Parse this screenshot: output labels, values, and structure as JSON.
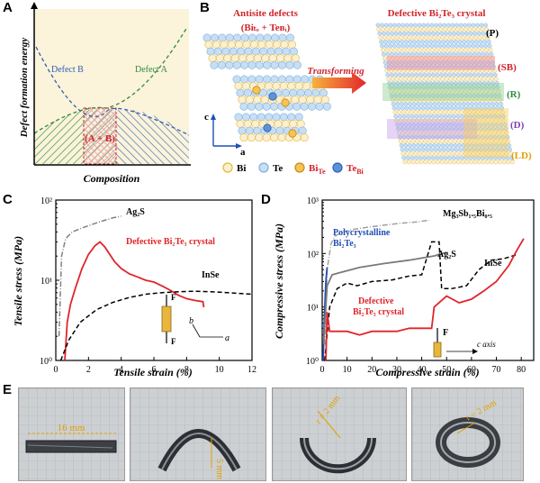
{
  "panels": {
    "A": {
      "label": "A",
      "ylabel": "Defect formation energy",
      "xlabel": "Composition",
      "defect_b": "Defect B",
      "defect_a": "Defect A",
      "region": "(A + B)",
      "colors": {
        "bg": "#fbf3da",
        "green": "#2e8b3f",
        "blue": "#2f5fb5",
        "red": "#d0252b"
      }
    },
    "B": {
      "label": "B",
      "left_title": "Antisite defects",
      "left_formula": "(Biₜₑ + Teʙᵢ)",
      "right_title": "Defective Bi₂Te₃ crystal",
      "arrow_text": "Transforming",
      "axis_c": "c",
      "axis_a": "a",
      "legend": [
        "Bi",
        "Te",
        "Bi_Te",
        "Te_Bi"
      ],
      "tags": [
        "(P)",
        "(SB)",
        "(R)",
        "(D)",
        "(LD)"
      ],
      "colors": {
        "bi": "#f2c96a",
        "te": "#a9cdee",
        "red": "#d0252b"
      }
    },
    "C": {
      "label": "C",
      "xlabel": "Tensile strain (%)",
      "ylabel": "Tensile stress (MPa)",
      "series_labels": {
        "ag2s": "Ag₂S",
        "bi2te3": "Defective Bi₂Te₃ crystal",
        "inse": "InSe"
      },
      "xticks": [
        "0",
        "2",
        "4",
        "6",
        "8",
        "10",
        "12"
      ],
      "yticks": [
        "10⁰",
        "10¹",
        "10²"
      ],
      "force": "F",
      "dir_b": "b",
      "dir_a": "a"
    },
    "D": {
      "label": "D",
      "xlabel": "Compressive strain (%)",
      "ylabel": "Compressive stress (MPa)",
      "series_labels": {
        "mg": "Mg₃Sb₁.₅Bi₀.₅",
        "poly1": "Polycrystalline",
        "poly2": "Bi₂Te₃",
        "ag2s": "Ag₂S",
        "inse": "InSe",
        "def1": "Defective",
        "def2": "Bi₂Te₃ crystal"
      },
      "xticks": [
        "0",
        "10",
        "20",
        "30",
        "40",
        "50",
        "60",
        "70",
        "80"
      ],
      "yticks": [
        "10⁰",
        "10¹",
        "10²",
        "10³"
      ],
      "force": "F",
      "c_axis": "c axis"
    },
    "E": {
      "label": "E",
      "photo1": "16 mm",
      "photo2": "5 mm",
      "photo3": "r = 2 mm",
      "photo4": "r = 2 mm"
    }
  },
  "chart_data": [
    {
      "type": "line",
      "title": "",
      "xlabel": "Tensile strain (%)",
      "ylabel": "Tensile stress (MPa)",
      "xlim": [
        0,
        12
      ],
      "ylim": [
        1,
        100
      ],
      "yscale": "log",
      "series": [
        {
          "name": "Ag₂S",
          "color": "#808080",
          "style": "dash-dot",
          "x": [
            0.2,
            0.35,
            0.6,
            1.0,
            1.5,
            2.0,
            2.5,
            3.0,
            3.5,
            4.0
          ],
          "y": [
            2,
            20,
            33,
            40,
            44,
            48,
            52,
            56,
            60,
            63
          ]
        },
        {
          "name": "Defective Bi₂Te₃ crystal",
          "color": "#e0252b",
          "style": "solid",
          "x": [
            0.55,
            0.7,
            0.9,
            1.2,
            1.6,
            2.0,
            2.4,
            2.7,
            3.0,
            3.3,
            3.6,
            4.0,
            4.5,
            5.0,
            5.5,
            6.0,
            6.5,
            7.0,
            7.5,
            8.0,
            8.5,
            9.0,
            9.05
          ],
          "y": [
            1,
            3,
            5,
            8,
            14,
            21,
            27,
            30,
            26,
            21,
            17,
            14,
            12,
            11,
            10,
            9.5,
            8.5,
            7.5,
            6.5,
            5.9,
            5.6,
            5.4,
            4.6
          ]
        },
        {
          "name": "InSe",
          "color": "#000000",
          "style": "dashed",
          "x": [
            0.3,
            0.8,
            1.5,
            2.5,
            3.5,
            4.5,
            5.5,
            6.5,
            7.5,
            8.5,
            9.5,
            10.5,
            11.5,
            12
          ],
          "y": [
            1,
            1.8,
            3,
            4.3,
            5.3,
            6.1,
            6.7,
            7.0,
            7.2,
            7.3,
            7.2,
            7.0,
            6.8,
            6.7
          ]
        }
      ]
    },
    {
      "type": "line",
      "title": "",
      "xlabel": "Compressive strain (%)",
      "ylabel": "Compressive stress (MPa)",
      "xlim": [
        0,
        85
      ],
      "ylim": [
        1,
        1000
      ],
      "yscale": "log",
      "series": [
        {
          "name": "Mg₃Sb₁.₅Bi₀.₅",
          "color": "#a0a0a0",
          "style": "dash-dot",
          "x": [
            1.0,
            2.0,
            3.5,
            5.0,
            8.0,
            12.0,
            18.0,
            25.0,
            32.0,
            38.0,
            43.0
          ],
          "y": [
            2,
            50,
            150,
            210,
            250,
            280,
            310,
            340,
            370,
            390,
            420
          ]
        },
        {
          "name": "Polycrystalline Bi₂Te₃",
          "color": "#1f4fb5",
          "style": "solid",
          "x": [
            0.4,
            0.8,
            1.2,
            1.5,
            1.8,
            2.0
          ],
          "y": [
            1,
            5,
            15,
            30,
            45,
            55
          ]
        },
        {
          "name": "Ag₂S",
          "color": "#7a7a7a",
          "style": "solid",
          "x": [
            0.5,
            2.0,
            4.0,
            8.0,
            15.0,
            25.0,
            35.0,
            45.0,
            50.0
          ],
          "y": [
            2,
            25,
            40,
            45,
            55,
            65,
            75,
            90,
            105
          ]
        },
        {
          "name": "InSe",
          "color": "#000000",
          "style": "dashed",
          "x": [
            1.0,
            3.0,
            6.0,
            10.0,
            14.0,
            20.0,
            28.0,
            35.0,
            40.0,
            44.0,
            47.0,
            48.0,
            52.0,
            58.0,
            63.0,
            68.0,
            73.0,
            78.0
          ],
          "y": [
            1,
            10,
            22,
            28,
            25,
            30,
            32,
            38,
            40,
            165,
            165,
            22,
            22,
            25,
            50,
            75,
            80,
            95
          ]
        },
        {
          "name": "Defective Bi₂Te₃ crystal",
          "color": "#e0252b",
          "style": "solid",
          "x": [
            1.5,
            2.0,
            3.0,
            6.0,
            10.0,
            15.0,
            20.0,
            25.0,
            30.0,
            35.0,
            40.0,
            44.0,
            45.0,
            50.0,
            55.0,
            60.0,
            65.0,
            70.0,
            75.0,
            78.0,
            81.0
          ],
          "y": [
            1,
            8,
            3.5,
            3.5,
            3.5,
            3.0,
            3.5,
            3.5,
            3.5,
            4.0,
            4.0,
            4.0,
            10,
            16,
            12,
            14,
            20,
            30,
            60,
            110,
            190
          ]
        }
      ]
    }
  ]
}
